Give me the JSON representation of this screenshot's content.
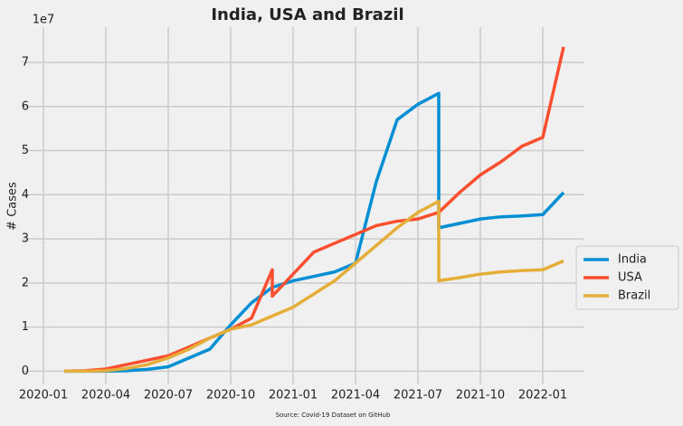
{
  "chart_data": {
    "type": "line",
    "title": "India, USA and Brazil",
    "y_label": "# Cases",
    "y_offset_label": "1e7",
    "source": "Source: Covid-19 Dataset on GitHub",
    "x": [
      "2020-02",
      "2020-03",
      "2020-04",
      "2020-05",
      "2020-06",
      "2020-07",
      "2020-08",
      "2020-09",
      "2020-10",
      "2020-11",
      "2020-12",
      "2020-12",
      "2021-01",
      "2021-02",
      "2021-03",
      "2021-04",
      "2021-05",
      "2021-06",
      "2021-07",
      "2021-08",
      "2021-08",
      "2021-09",
      "2021-10",
      "2021-11",
      "2021-12",
      "2022-01",
      "2022-02"
    ],
    "series": [
      {
        "name": "India",
        "color": "#008fd5",
        "values": [
          0,
          0,
          0,
          0.01,
          0.04,
          0.1,
          0.3,
          0.5,
          1.05,
          1.55,
          1.9,
          1.9,
          2.05,
          2.15,
          2.25,
          2.45,
          4.3,
          5.7,
          6.05,
          6.3,
          3.25,
          3.35,
          3.45,
          3.5,
          3.52,
          3.55,
          4.05
        ]
      },
      {
        "name": "USA",
        "color": "#fc4f30",
        "values": [
          0,
          0.01,
          0.05,
          0.15,
          0.25,
          0.35,
          0.55,
          0.75,
          0.95,
          1.2,
          2.3,
          1.7,
          2.2,
          2.7,
          2.9,
          3.1,
          3.3,
          3.4,
          3.45,
          3.6,
          3.6,
          4.05,
          4.45,
          4.75,
          5.1,
          5.3,
          7.35
        ]
      },
      {
        "name": "Brazil",
        "color": "#e5ae38",
        "values": [
          0,
          0,
          0.01,
          0.06,
          0.15,
          0.3,
          0.5,
          0.75,
          0.95,
          1.05,
          1.25,
          1.25,
          1.45,
          1.75,
          2.05,
          2.45,
          2.85,
          3.25,
          3.6,
          3.85,
          2.05,
          2.12,
          2.2,
          2.25,
          2.28,
          2.3,
          2.5
        ]
      }
    ],
    "xlim": [
      "2019-12",
      "2022-03"
    ],
    "xticks": [
      "2020-01",
      "2020-04",
      "2020-07",
      "2020-10",
      "2021-01",
      "2021-04",
      "2021-07",
      "2021-10",
      "2022-01"
    ],
    "ylim": [
      -0.3,
      7.8
    ],
    "yticks": [
      0,
      1,
      2,
      3,
      4,
      5,
      6,
      7
    ],
    "grid": true,
    "legend": "right"
  }
}
